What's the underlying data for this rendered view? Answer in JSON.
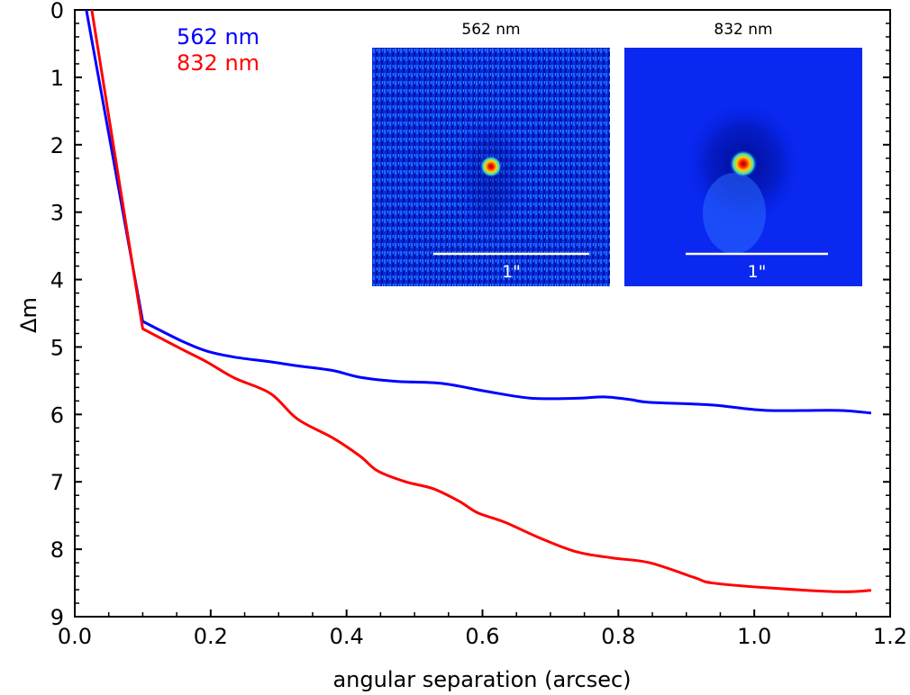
{
  "chart_data": {
    "type": "line",
    "title": "",
    "xlabel": "angular separation (arcsec)",
    "ylabel": "Δm",
    "xlim": [
      0.0,
      1.2
    ],
    "ylim": [
      9,
      0
    ],
    "y_inverted": true,
    "grid": false,
    "x_ticks": [
      "0.0",
      "0.2",
      "0.4",
      "0.6",
      "0.8",
      "1.0",
      "1.2"
    ],
    "x_tick_values": [
      0.0,
      0.2,
      0.4,
      0.6,
      0.8,
      1.0,
      1.2
    ],
    "x_minor_step": 0.05,
    "y_ticks": [
      "0",
      "1",
      "2",
      "3",
      "4",
      "5",
      "6",
      "7",
      "8",
      "9"
    ],
    "y_tick_values": [
      0,
      1,
      2,
      3,
      4,
      5,
      6,
      7,
      8,
      9
    ],
    "y_minor_step": 0.2,
    "legend": {
      "placement": "top-left",
      "entries": [
        {
          "label": "562 nm",
          "color": "#0000ff"
        },
        {
          "label": "832 nm",
          "color": "#ff0000"
        }
      ]
    },
    "series": [
      {
        "name": "562 nm",
        "color": "#0000ff",
        "x": [
          0.0,
          0.017,
          0.1,
          0.155,
          0.194,
          0.235,
          0.288,
          0.328,
          0.38,
          0.42,
          0.473,
          0.54,
          0.607,
          0.672,
          0.739,
          0.779,
          0.818,
          0.845,
          0.938,
          1.017,
          1.123,
          1.172
        ],
        "y": [
          -0.95,
          0.0,
          4.62,
          4.9,
          5.06,
          5.15,
          5.22,
          5.28,
          5.35,
          5.45,
          5.51,
          5.54,
          5.66,
          5.76,
          5.76,
          5.74,
          5.78,
          5.82,
          5.86,
          5.94,
          5.94,
          5.98
        ]
      },
      {
        "name": "832 nm",
        "color": "#ff0000",
        "x": [
          0.0,
          0.025,
          0.1,
          0.155,
          0.194,
          0.235,
          0.288,
          0.328,
          0.38,
          0.42,
          0.446,
          0.487,
          0.527,
          0.566,
          0.593,
          0.633,
          0.686,
          0.739,
          0.792,
          0.846,
          0.912,
          0.938,
          1.017,
          1.123,
          1.172
        ],
        "y": [
          -1.58,
          0.0,
          4.73,
          5.02,
          5.22,
          5.46,
          5.69,
          6.07,
          6.35,
          6.62,
          6.84,
          7.0,
          7.1,
          7.29,
          7.46,
          7.6,
          7.84,
          8.04,
          8.13,
          8.2,
          8.42,
          8.5,
          8.57,
          8.63,
          8.61
        ]
      }
    ],
    "insets": [
      {
        "title": "562 nm",
        "scale_label": "1\"",
        "colormap": "jet",
        "texture": "speckle"
      },
      {
        "title": "832 nm",
        "scale_label": "1\"",
        "colormap": "jet",
        "texture": "smooth"
      }
    ]
  }
}
